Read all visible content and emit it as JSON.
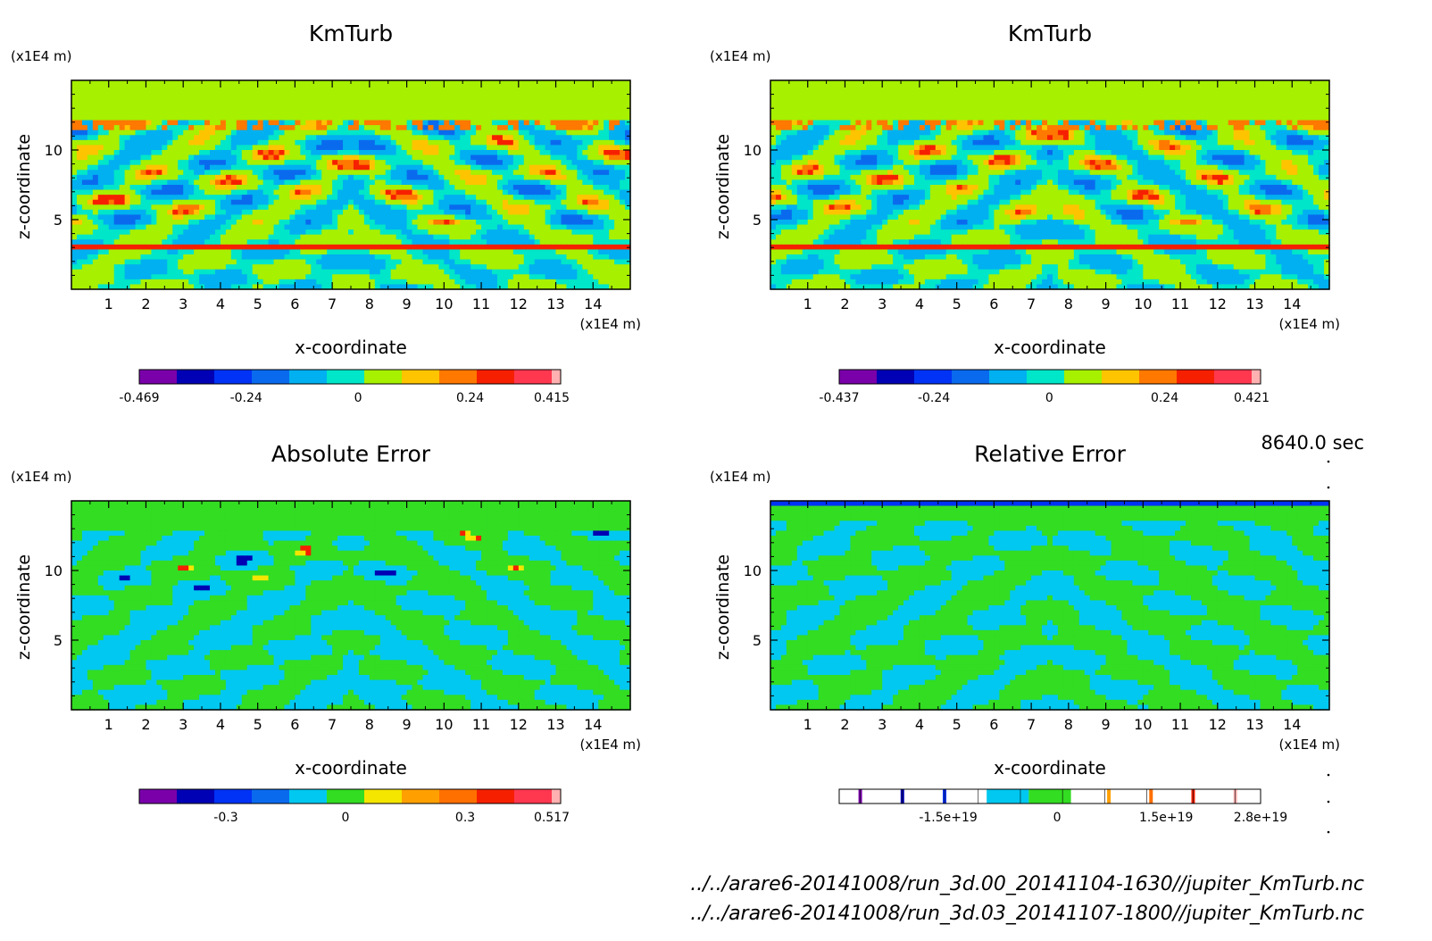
{
  "figure": {
    "time_label": "8640.0 sec",
    "files": [
      "../../arare6-20141008/run_3d.00_20141104-1630//jupiter_KmTurb.nc",
      "../../arare6-20141008/run_3d.03_20141107-1800//jupiter_KmTurb.nc"
    ]
  },
  "chart_data": [
    {
      "type": "heatmap",
      "title": "KmTurb",
      "xlabel": "x-coordinate",
      "ylabel": "z-coordinate",
      "x_unit": "(x1E4 m)",
      "y_unit": "(x1E4 m)",
      "xlim": [
        0,
        15
      ],
      "ylim": [
        0,
        15
      ],
      "x_ticks": [
        1,
        2,
        3,
        4,
        5,
        6,
        7,
        8,
        9,
        10,
        11,
        12,
        13,
        14
      ],
      "y_ticks": [
        5,
        10
      ],
      "grid": false,
      "field_style": "upper",
      "colorbar": {
        "type": "filled",
        "colors": [
          "#7A00AA",
          "#0000B4",
          "#0033F5",
          "#0A6AEE",
          "#00B0F0",
          "#00E6C8",
          "#A6F000",
          "#FFC400",
          "#FF7800",
          "#F62000",
          "#FF3850",
          "#FFB0B0"
        ],
        "tick_labels": [
          "-0.469",
          "-0.24",
          "0",
          "0.24",
          "0.415"
        ],
        "tick_values": [
          -0.469,
          -0.24,
          0,
          0.24,
          0.415
        ],
        "min": -0.469,
        "max": 0.415
      }
    },
    {
      "type": "heatmap",
      "title": "KmTurb",
      "xlabel": "x-coordinate",
      "ylabel": "z-coordinate",
      "x_unit": "(x1E4 m)",
      "y_unit": "(x1E4 m)",
      "xlim": [
        0,
        15
      ],
      "ylim": [
        0,
        15
      ],
      "x_ticks": [
        1,
        2,
        3,
        4,
        5,
        6,
        7,
        8,
        9,
        10,
        11,
        12,
        13,
        14
      ],
      "y_ticks": [
        5,
        10
      ],
      "grid": false,
      "field_style": "upper",
      "colorbar": {
        "type": "filled",
        "colors": [
          "#7A00AA",
          "#0000B4",
          "#0033F5",
          "#0A6AEE",
          "#00B0F0",
          "#00E6C8",
          "#A6F000",
          "#FFC400",
          "#FF7800",
          "#F62000",
          "#FF3850",
          "#FFB0B0"
        ],
        "tick_labels": [
          "-0.437",
          "-0.24",
          "0",
          "0.24",
          "0.421"
        ],
        "tick_values": [
          -0.437,
          -0.24,
          0,
          0.24,
          0.421
        ],
        "min": -0.437,
        "max": 0.421
      }
    },
    {
      "type": "heatmap",
      "title": "Absolute Error",
      "xlabel": "x-coordinate",
      "ylabel": "z-coordinate",
      "x_unit": "(x1E4 m)",
      "y_unit": "(x1E4 m)",
      "xlim": [
        0,
        15
      ],
      "ylim": [
        0,
        15
      ],
      "x_ticks": [
        1,
        2,
        3,
        4,
        5,
        6,
        7,
        8,
        9,
        10,
        11,
        12,
        13,
        14
      ],
      "y_ticks": [
        5,
        10
      ],
      "grid": false,
      "field_style": "abs",
      "colorbar": {
        "type": "filled",
        "colors": [
          "#7A00AA",
          "#0000B4",
          "#0033F5",
          "#0A6AEE",
          "#00C8F0",
          "#33DD22",
          "#F5E600",
          "#FFA000",
          "#FF7000",
          "#F62000",
          "#FF3850",
          "#FFB0B0"
        ],
        "tick_labels": [
          "-0.3",
          "0",
          "0.3",
          "0.517"
        ],
        "tick_values": [
          -0.3,
          0,
          0.3,
          0.517
        ],
        "min": -0.517,
        "max": 0.517
      }
    },
    {
      "type": "heatmap",
      "title": "Relative Error",
      "xlabel": "x-coordinate",
      "ylabel": "z-coordinate",
      "x_unit": "(x1E4 m)",
      "y_unit": "(x1E4 m)",
      "xlim": [
        0,
        15
      ],
      "ylim": [
        0,
        15
      ],
      "x_ticks": [
        1,
        2,
        3,
        4,
        5,
        6,
        7,
        8,
        9,
        10,
        11,
        12,
        13,
        14
      ],
      "y_ticks": [
        5,
        10
      ],
      "grid": false,
      "field_style": "rel",
      "colorbar": {
        "type": "sparse",
        "colors": [
          "#7A00AA",
          "#0000B4",
          "#0033F5",
          "#00C8F0",
          "#33DD22",
          "#FFA000",
          "#FF7000",
          "#F62000",
          "#FFB0B0"
        ],
        "tick_labels": [
          "-1.5e+19",
          "0",
          "1.5e+19",
          "2.8e+19"
        ],
        "tick_values": [
          -1.5e+19,
          0,
          1.5e+19,
          2.8e+19
        ],
        "min": -3e+19,
        "max": 2.8e+19
      }
    }
  ]
}
